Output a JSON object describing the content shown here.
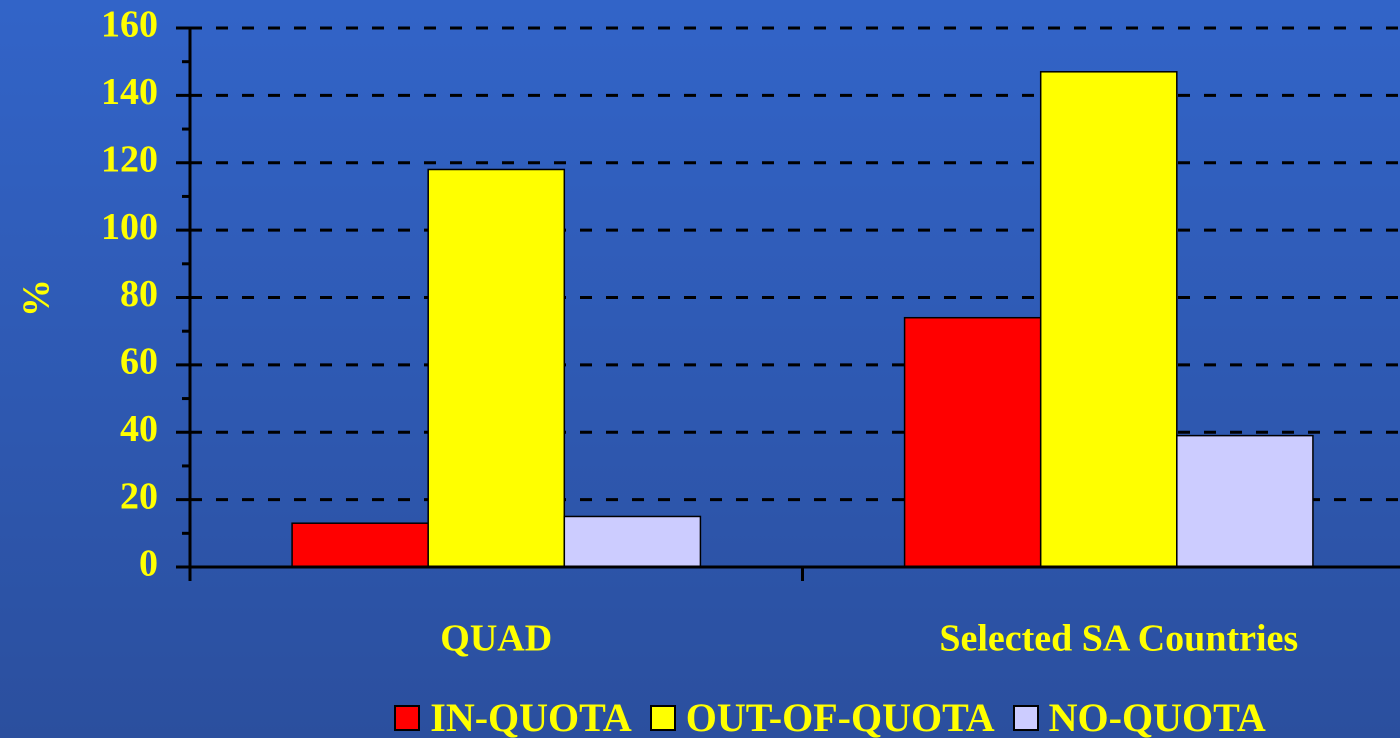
{
  "chart_data": {
    "type": "bar",
    "ylabel": "%",
    "categories": [
      "QUAD",
      "Selected SA Countries"
    ],
    "series": [
      {
        "name": "IN-QUOTA",
        "color": "#ff0000",
        "values": [
          13,
          74
        ]
      },
      {
        "name": "OUT-OF-QUOTA",
        "color": "#ffff00",
        "values": [
          118,
          147
        ]
      },
      {
        "name": "NO-QUOTA",
        "color": "#ccccff",
        "values": [
          15,
          39
        ]
      }
    ],
    "ylim": [
      0,
      160
    ],
    "yticks": [
      0,
      20,
      40,
      60,
      80,
      100,
      120,
      140,
      160
    ],
    "grid": true,
    "legend": "bottom"
  }
}
